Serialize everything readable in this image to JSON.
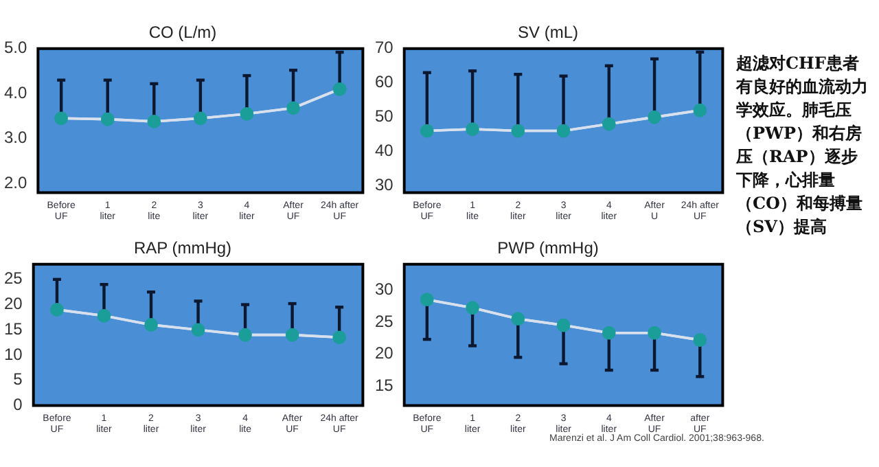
{
  "chart_data": [
    {
      "type": "line",
      "title": "CO (L/m)",
      "categories": [
        "Before\nUF",
        "1\nliter",
        "2\nlite",
        "3\nliter",
        "4\nliter",
        "After\nUF",
        "24h after\nUF"
      ],
      "series": [
        {
          "color": "#1b9e9a",
          "values": [
            3.45,
            3.43,
            3.38,
            3.45,
            3.55,
            3.68,
            4.1
          ],
          "errors": [
            [
              3.45,
              4.3
            ],
            [
              3.43,
              4.3
            ],
            [
              3.38,
              4.22
            ],
            [
              3.45,
              4.3
            ],
            [
              3.55,
              4.4
            ],
            [
              3.68,
              4.52
            ],
            [
              4.1,
              4.92
            ]
          ]
        }
      ],
      "ylim": [
        1.8,
        5.0
      ],
      "yticks": [
        {
          "value": 2,
          "label": "2.0"
        },
        {
          "value": 3,
          "label": "3.0"
        },
        {
          "value": 4,
          "label": "4.0"
        },
        {
          "value": 5,
          "label": "5.0"
        }
      ],
      "marker": "circle",
      "grid": false,
      "legend": false
    },
    {
      "type": "line",
      "title": "SV (mL)",
      "categories": [
        "Before\nUF",
        "1\nlite",
        "2\nliter",
        "3\nliter",
        "4\nliter",
        "After\nU",
        "24h after\nUF"
      ],
      "series": [
        {
          "color": "#1b9e9a",
          "values": [
            46,
            46.5,
            46,
            46,
            48,
            50,
            52
          ],
          "errors": [
            [
              46,
              63
            ],
            [
              46.5,
              63.5
            ],
            [
              46,
              62.5
            ],
            [
              46,
              62
            ],
            [
              48,
              65
            ],
            [
              50,
              67
            ],
            [
              52,
              69
            ]
          ]
        }
      ],
      "ylim": [
        28,
        70
      ],
      "yticks": [
        30,
        40,
        50,
        60,
        70
      ],
      "marker": "circle",
      "grid": false,
      "legend": false
    },
    {
      "type": "line",
      "title": "RAP (mmHg)",
      "categories": [
        "Before\nUF",
        "1\nliter",
        "2\nliter",
        "3\nliter",
        "4\nlite",
        "After\nUF",
        "24h after\nUF"
      ],
      "series": [
        {
          "color": "#1b9e9a",
          "values": [
            19,
            17.8,
            16,
            15,
            14,
            14,
            13.5
          ],
          "errors": [
            [
              19,
              25
            ],
            [
              17.8,
              24
            ],
            [
              16,
              22.5
            ],
            [
              15,
              20.7
            ],
            [
              14,
              20
            ],
            [
              14,
              20.2
            ],
            [
              13.5,
              19.5
            ]
          ]
        }
      ],
      "ylim": [
        0,
        28
      ],
      "yticks": [
        0,
        5,
        10,
        15,
        20,
        25
      ],
      "marker": "circle",
      "grid": false,
      "legend": false
    },
    {
      "type": "line",
      "title": "PWP (mmHg)",
      "categories": [
        "Before\nUF",
        "1\nliter",
        "2\nliter",
        "3\nliter",
        "4\nliter",
        "After\nUF",
        "after\nUF"
      ],
      "series": [
        {
          "color": "#1b9e9a",
          "values": [
            28.5,
            27.2,
            25.5,
            24.5,
            23.3,
            23.3,
            22.2
          ],
          "errors": [
            [
              22.3,
              28.5
            ],
            [
              21.3,
              27.2
            ],
            [
              19.5,
              25.5
            ],
            [
              18.5,
              24.5
            ],
            [
              17.5,
              23.3
            ],
            [
              17.5,
              23.3
            ],
            [
              16.5,
              22.2
            ]
          ]
        }
      ],
      "ylim": [
        12,
        34
      ],
      "yticks": [
        15,
        20,
        25,
        30
      ],
      "marker": "circle",
      "grid": false,
      "legend": false
    },
    {
      "type": "other",
      "annotations": [
        "超滤对CHF患者有良好的血流动力学效应。肺毛压（PWP）和右房压（RAP）逐步下降，心排量（CO）和每搏量（SV）提高",
        "Marenzi et al. J Am Coll Cardiol. 2001;38:963-968."
      ]
    }
  ]
}
